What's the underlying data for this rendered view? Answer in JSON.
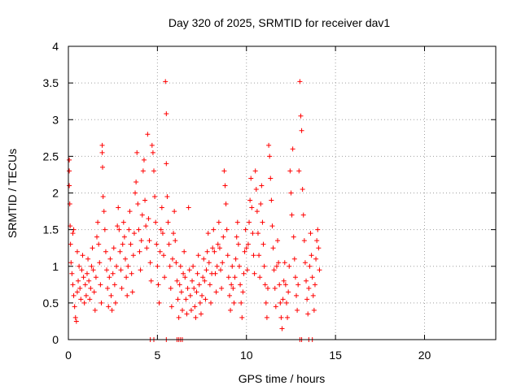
{
  "chart_data": {
    "type": "scatter",
    "title": "Day 320 of 2025, SRMTID for receiver dav1",
    "xlabel": "GPS time / hours",
    "ylabel": "SRMTID / TECUs",
    "xlim": [
      0,
      24
    ],
    "ylim": [
      0,
      4
    ],
    "x_ticks": [
      0,
      5,
      10,
      15,
      20
    ],
    "x_tick_labels": [
      "0",
      "5",
      "10",
      "15",
      "20"
    ],
    "y_ticks": [
      0,
      0.5,
      1,
      1.5,
      2,
      2.5,
      3,
      3.5,
      4
    ],
    "y_tick_labels": [
      "0",
      "0.5",
      "1",
      "1.5",
      "2",
      "2.5",
      "3",
      "3.5",
      "4"
    ],
    "grid": true,
    "marker": "+",
    "series": [
      {
        "name": "SRMTID",
        "color": "#ff0000",
        "points": [
          [
            0.05,
            2.45
          ],
          [
            0.05,
            2.3
          ],
          [
            0.05,
            2.1
          ],
          [
            0.08,
            1.85
          ],
          [
            0.1,
            1.55
          ],
          [
            0.12,
            1.3
          ],
          [
            0.15,
            1.05
          ],
          [
            0.2,
            0.9
          ],
          [
            0.25,
            0.75
          ],
          [
            0.3,
            0.6
          ],
          [
            0.35,
            0.45
          ],
          [
            0.4,
            0.3
          ],
          [
            0.45,
            0.25
          ],
          [
            0.5,
            0.65
          ],
          [
            0.55,
            0.8
          ],
          [
            0.6,
            1.0
          ],
          [
            0.65,
            0.7
          ],
          [
            0.7,
            0.55
          ],
          [
            0.75,
            0.95
          ],
          [
            0.8,
            1.15
          ],
          [
            0.3,
            1.5
          ],
          [
            0.25,
            1.45
          ],
          [
            0.5,
            1.2
          ],
          [
            0.85,
            0.85
          ],
          [
            0.9,
            0.5
          ],
          [
            0.95,
            0.75
          ],
          [
            1.0,
            0.6
          ],
          [
            1.05,
            0.9
          ],
          [
            1.1,
            1.1
          ],
          [
            1.15,
            0.8
          ],
          [
            1.2,
            0.55
          ],
          [
            1.25,
            0.7
          ],
          [
            1.3,
            1.0
          ],
          [
            1.35,
            1.25
          ],
          [
            1.4,
            0.95
          ],
          [
            1.45,
            0.65
          ],
          [
            1.5,
            0.4
          ],
          [
            1.55,
            0.85
          ],
          [
            1.6,
            1.4
          ],
          [
            1.65,
            1.6
          ],
          [
            1.7,
            1.3
          ],
          [
            1.75,
            1.05
          ],
          [
            1.8,
            0.75
          ],
          [
            1.85,
            0.5
          ],
          [
            1.9,
            2.65
          ],
          [
            1.9,
            2.55
          ],
          [
            1.92,
            2.35
          ],
          [
            1.95,
            1.95
          ],
          [
            2.0,
            1.75
          ],
          [
            2.05,
            1.5
          ],
          [
            2.1,
            1.2
          ],
          [
            2.15,
            0.95
          ],
          [
            2.2,
            0.7
          ],
          [
            2.25,
            0.45
          ],
          [
            2.3,
            0.85
          ],
          [
            2.35,
            1.1
          ],
          [
            2.4,
            0.6
          ],
          [
            2.45,
            0.4
          ],
          [
            2.5,
            0.9
          ],
          [
            2.55,
            1.25
          ],
          [
            2.6,
            0.75
          ],
          [
            2.65,
            0.5
          ],
          [
            2.7,
            1.0
          ],
          [
            2.75,
            1.55
          ],
          [
            2.8,
            1.8
          ],
          [
            2.85,
            1.5
          ],
          [
            2.9,
            1.2
          ],
          [
            2.95,
            0.95
          ],
          [
            3.0,
            0.7
          ],
          [
            3.05,
            1.3
          ],
          [
            3.1,
            1.6
          ],
          [
            3.15,
            1.4
          ],
          [
            3.2,
            1.1
          ],
          [
            3.25,
            0.85
          ],
          [
            3.3,
            0.6
          ],
          [
            3.35,
            1.0
          ],
          [
            3.4,
            1.5
          ],
          [
            3.45,
            1.75
          ],
          [
            3.5,
            1.3
          ],
          [
            3.55,
            0.9
          ],
          [
            3.6,
            0.65
          ],
          [
            3.65,
            1.15
          ],
          [
            3.7,
            1.45
          ],
          [
            3.75,
            2.0
          ],
          [
            3.8,
            2.15
          ],
          [
            3.85,
            2.55
          ],
          [
            3.9,
            1.85
          ],
          [
            3.95,
            1.5
          ],
          [
            4.0,
            1.2
          ],
          [
            4.05,
            0.95
          ],
          [
            4.1,
            1.35
          ],
          [
            4.15,
            1.7
          ],
          [
            4.2,
            2.3
          ],
          [
            4.25,
            2.45
          ],
          [
            4.3,
            1.9
          ],
          [
            4.35,
            1.55
          ],
          [
            4.4,
            1.25
          ],
          [
            4.45,
            2.8
          ],
          [
            4.5,
            1.65
          ],
          [
            4.55,
            1.35
          ],
          [
            4.6,
            1.05
          ],
          [
            4.65,
            0.8
          ],
          [
            4.7,
            2.65
          ],
          [
            4.75,
            2.55
          ],
          [
            4.8,
            2.3
          ],
          [
            4.85,
            1.95
          ],
          [
            4.9,
            1.6
          ],
          [
            4.95,
            1.3
          ],
          [
            5.0,
            1.0
          ],
          [
            5.05,
            0.75
          ],
          [
            5.1,
            0.5
          ],
          [
            5.15,
            1.2
          ],
          [
            5.2,
            1.5
          ],
          [
            5.25,
            1.8
          ],
          [
            5.3,
            1.45
          ],
          [
            5.35,
            1.15
          ],
          [
            5.4,
            0.85
          ],
          [
            5.45,
            3.52
          ],
          [
            5.5,
            3.08
          ],
          [
            5.5,
            2.4
          ],
          [
            5.55,
            1.95
          ],
          [
            5.6,
            1.6
          ],
          [
            5.65,
            1.3
          ],
          [
            5.7,
            1.0
          ],
          [
            5.75,
            0.7
          ],
          [
            5.8,
            0.45
          ],
          [
            5.85,
            1.1
          ],
          [
            5.9,
            1.45
          ],
          [
            5.95,
            1.75
          ],
          [
            6.0,
            1.35
          ],
          [
            6.05,
            1.05
          ],
          [
            6.1,
            0.8
          ],
          [
            6.15,
            0.55
          ],
          [
            6.2,
            0.3
          ],
          [
            6.25,
            0.75
          ],
          [
            6.3,
            1.0
          ],
          [
            6.35,
            0.65
          ],
          [
            6.4,
            0.4
          ],
          [
            6.45,
            0.9
          ],
          [
            6.5,
            1.2
          ],
          [
            6.55,
            0.85
          ],
          [
            6.6,
            0.55
          ],
          [
            6.65,
            0.35
          ],
          [
            6.7,
            0.7
          ],
          [
            6.75,
            1.8
          ],
          [
            6.8,
            0.95
          ],
          [
            6.85,
            0.6
          ],
          [
            6.9,
            0.4
          ],
          [
            6.95,
            0.8
          ],
          [
            7.0,
            1.0
          ],
          [
            7.05,
            0.7
          ],
          [
            7.1,
            0.45
          ],
          [
            7.15,
            0.3
          ],
          [
            7.2,
            0.65
          ],
          [
            7.25,
            0.9
          ],
          [
            7.3,
            1.15
          ],
          [
            7.35,
            0.75
          ],
          [
            7.4,
            0.5
          ],
          [
            7.45,
            0.35
          ],
          [
            7.5,
            0.6
          ],
          [
            7.55,
            0.85
          ],
          [
            7.6,
            1.1
          ],
          [
            7.65,
            0.8
          ],
          [
            7.7,
            0.55
          ],
          [
            7.75,
            0.95
          ],
          [
            7.8,
            1.2
          ],
          [
            7.85,
            1.45
          ],
          [
            7.9,
            1.05
          ],
          [
            7.95,
            0.75
          ],
          [
            8.0,
            0.5
          ],
          [
            8.05,
            0.9
          ],
          [
            8.1,
            1.25
          ],
          [
            8.15,
            1.5
          ],
          [
            8.2,
            1.2
          ],
          [
            8.25,
            0.9
          ],
          [
            8.3,
            0.65
          ],
          [
            8.35,
            1.0
          ],
          [
            8.4,
            1.3
          ],
          [
            8.45,
            1.6
          ],
          [
            8.5,
            1.25
          ],
          [
            8.55,
            0.95
          ],
          [
            8.6,
            0.7
          ],
          [
            8.65,
            1.05
          ],
          [
            8.7,
            1.4
          ],
          [
            8.75,
            2.3
          ],
          [
            8.8,
            2.1
          ],
          [
            8.85,
            1.85
          ],
          [
            8.9,
            1.5
          ],
          [
            8.95,
            1.15
          ],
          [
            9.0,
            0.85
          ],
          [
            9.05,
            0.6
          ],
          [
            9.1,
            0.4
          ],
          [
            9.15,
            0.75
          ],
          [
            9.2,
            1.0
          ],
          [
            9.25,
            0.7
          ],
          [
            9.3,
            0.5
          ],
          [
            9.35,
            0.85
          ],
          [
            9.4,
            1.1
          ],
          [
            9.45,
            1.4
          ],
          [
            9.5,
            1.6
          ],
          [
            9.55,
            1.3
          ],
          [
            9.6,
            1.0
          ],
          [
            9.65,
            0.75
          ],
          [
            9.7,
            0.5
          ],
          [
            9.75,
            0.3
          ],
          [
            9.8,
            0.65
          ],
          [
            9.85,
            0.9
          ],
          [
            9.9,
            1.2
          ],
          [
            9.95,
            1.5
          ],
          [
            10.0,
            1.25
          ],
          [
            10.05,
            0.95
          ],
          [
            10.1,
            1.3
          ],
          [
            10.15,
            1.6
          ],
          [
            10.2,
            1.9
          ],
          [
            10.25,
            2.2
          ],
          [
            10.3,
            1.8
          ],
          [
            10.35,
            1.45
          ],
          [
            10.4,
            1.15
          ],
          [
            10.45,
            0.9
          ],
          [
            10.5,
            2.3
          ],
          [
            10.55,
            2.05
          ],
          [
            10.6,
            1.75
          ],
          [
            10.65,
            1.45
          ],
          [
            10.7,
            1.15
          ],
          [
            10.75,
            0.85
          ],
          [
            10.8,
            1.85
          ],
          [
            10.85,
            2.1
          ],
          [
            10.9,
            1.6
          ],
          [
            10.95,
            1.3
          ],
          [
            11.0,
            1.0
          ],
          [
            11.05,
            0.75
          ],
          [
            11.1,
            0.5
          ],
          [
            11.15,
            0.3
          ],
          [
            11.2,
            0.7
          ],
          [
            11.25,
            2.65
          ],
          [
            11.3,
            2.5
          ],
          [
            11.35,
            2.2
          ],
          [
            11.4,
            1.9
          ],
          [
            11.45,
            1.55
          ],
          [
            11.5,
            1.25
          ],
          [
            11.55,
            0.95
          ],
          [
            11.6,
            0.7
          ],
          [
            11.65,
            0.45
          ],
          [
            11.7,
            1.0
          ],
          [
            11.75,
            1.35
          ],
          [
            11.8,
            1.05
          ],
          [
            11.85,
            0.75
          ],
          [
            11.9,
            0.5
          ],
          [
            11.95,
            0.3
          ],
          [
            12.0,
            0.15
          ],
          [
            12.05,
            0.55
          ],
          [
            12.1,
            0.8
          ],
          [
            12.15,
            1.05
          ],
          [
            12.2,
            0.75
          ],
          [
            12.25,
            0.5
          ],
          [
            12.3,
            0.3
          ],
          [
            12.35,
            0.65
          ],
          [
            12.4,
            1.0
          ],
          [
            12.45,
            2.3
          ],
          [
            12.5,
            2.0
          ],
          [
            12.55,
            1.7
          ],
          [
            12.6,
            2.6
          ],
          [
            12.65,
            1.4
          ],
          [
            12.7,
            1.1
          ],
          [
            12.75,
            0.85
          ],
          [
            12.8,
            0.6
          ],
          [
            12.85,
            0.4
          ],
          [
            12.9,
            0.75
          ],
          [
            12.95,
            2.3
          ],
          [
            13.0,
            3.52
          ],
          [
            13.05,
            3.05
          ],
          [
            13.1,
            2.85
          ],
          [
            13.15,
            2.05
          ],
          [
            13.2,
            1.7
          ],
          [
            13.25,
            1.35
          ],
          [
            13.3,
            1.05
          ],
          [
            13.35,
            0.8
          ],
          [
            13.4,
            0.55
          ],
          [
            13.45,
            0.35
          ],
          [
            13.5,
            0.7
          ],
          [
            13.55,
            1.0
          ],
          [
            13.6,
            1.45
          ],
          [
            13.65,
            1.15
          ],
          [
            13.7,
            0.85
          ],
          [
            13.75,
            0.6
          ],
          [
            13.8,
            0.4
          ],
          [
            13.85,
            0.75
          ],
          [
            13.9,
            1.1
          ],
          [
            13.95,
            1.35
          ],
          [
            14.0,
            1.5
          ],
          [
            14.05,
            1.25
          ],
          [
            14.1,
            0.95
          ],
          [
            4.6,
            0.0
          ],
          [
            4.8,
            0.0
          ],
          [
            5.5,
            0.0
          ],
          [
            6.1,
            0.0
          ],
          [
            6.2,
            0.0
          ],
          [
            6.3,
            0.0
          ],
          [
            6.4,
            0.0
          ],
          [
            13.0,
            0.0
          ],
          [
            13.1,
            0.0
          ],
          [
            13.5,
            0.0
          ],
          [
            13.7,
            0.0
          ]
        ]
      }
    ]
  }
}
